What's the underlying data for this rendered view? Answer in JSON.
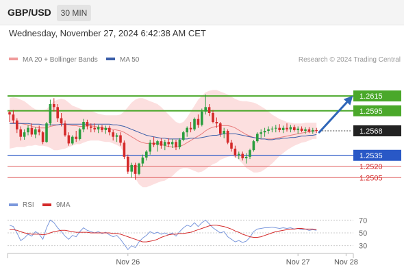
{
  "header": {
    "symbol": "GBP/USD",
    "timeframe": "30 MIN",
    "timestamp": "Wednesday, November 27, 2024 6:42:38 AM CET"
  },
  "legend": {
    "ma20_label": "MA 20 + Bollinger Bands",
    "ma50_label": "MA 50",
    "source": "Research © 2024 Trading Central",
    "rsi_label": "RSI",
    "rsi_ma_label": "9MA"
  },
  "colors": {
    "up_candle": "#2a9d3e",
    "down_candle": "#d42a2a",
    "bollinger": "#fcd9d9",
    "ma20": "#e87c7c",
    "ma50": "#3a5ea8",
    "resistance": "#4aa82a",
    "pivot": "#2958c6",
    "support": "#e06060",
    "arrow": "#2f66b8",
    "rsi": "#7b98dc",
    "rsi_ma": "#d42a2a"
  },
  "chart_data": [
    {
      "type": "candlestick",
      "ylim": [
        1.2484,
        1.2652
      ],
      "current_price": 1.2568,
      "levels": [
        {
          "value": 1.2615,
          "label": "1.2615",
          "kind": "resistance"
        },
        {
          "value": 1.2595,
          "label": "1.2595",
          "kind": "resistance"
        },
        {
          "value": 1.2568,
          "label": "1.2568",
          "kind": "current"
        },
        {
          "value": 1.2535,
          "label": "1.2535",
          "kind": "pivot"
        },
        {
          "value": 1.252,
          "label": "1.2520",
          "kind": "support"
        },
        {
          "value": 1.2505,
          "label": "1.2505",
          "kind": "support"
        }
      ],
      "x_ticks": [
        {
          "index": 32,
          "label": "Nov 26"
        },
        {
          "index": 78,
          "label": "Nov 27"
        },
        {
          "index": 91,
          "label": "Nov 28"
        }
      ],
      "candles": [
        [
          1.2593,
          1.2595,
          1.258,
          1.259
        ],
        [
          1.259,
          1.2596,
          1.2578,
          1.2582
        ],
        [
          1.2582,
          1.2585,
          1.2565,
          1.257
        ],
        [
          1.257,
          1.2574,
          1.2555,
          1.256
        ],
        [
          1.256,
          1.257,
          1.2556,
          1.2566
        ],
        [
          1.2566,
          1.2576,
          1.2562,
          1.2572
        ],
        [
          1.2572,
          1.2578,
          1.256,
          1.2563
        ],
        [
          1.2563,
          1.2573,
          1.2558,
          1.257
        ],
        [
          1.257,
          1.2575,
          1.2562,
          1.2566
        ],
        [
          1.2566,
          1.2568,
          1.255,
          1.2553
        ],
        [
          1.2553,
          1.258,
          1.2552,
          1.2578
        ],
        [
          1.2578,
          1.261,
          1.2575,
          1.2604
        ],
        [
          1.2604,
          1.2612,
          1.2594,
          1.26
        ],
        [
          1.26,
          1.2604,
          1.258,
          1.2585
        ],
        [
          1.2585,
          1.2592,
          1.2574,
          1.2578
        ],
        [
          1.2578,
          1.2582,
          1.256,
          1.2562
        ],
        [
          1.2562,
          1.2566,
          1.2548,
          1.2551
        ],
        [
          1.2551,
          1.2562,
          1.2549,
          1.256
        ],
        [
          1.256,
          1.2568,
          1.2553,
          1.2557
        ],
        [
          1.2557,
          1.2572,
          1.2555,
          1.257
        ],
        [
          1.257,
          1.2584,
          1.2566,
          1.258
        ],
        [
          1.258,
          1.2583,
          1.257,
          1.2574
        ],
        [
          1.2574,
          1.2578,
          1.2566,
          1.2572
        ],
        [
          1.2572,
          1.2578,
          1.2566,
          1.257
        ],
        [
          1.257,
          1.2576,
          1.2565,
          1.2573
        ],
        [
          1.2573,
          1.2576,
          1.2566,
          1.2569
        ],
        [
          1.2569,
          1.2575,
          1.2564,
          1.2572
        ],
        [
          1.2572,
          1.2575,
          1.2562,
          1.2566
        ],
        [
          1.2566,
          1.2569,
          1.2555,
          1.256
        ],
        [
          1.256,
          1.2565,
          1.2553,
          1.2562
        ],
        [
          1.2562,
          1.2566,
          1.2548,
          1.2552
        ],
        [
          1.2552,
          1.2555,
          1.253,
          1.2533
        ],
        [
          1.2533,
          1.2536,
          1.251,
          1.2513
        ],
        [
          1.2513,
          1.2525,
          1.2505,
          1.2522
        ],
        [
          1.2522,
          1.2525,
          1.2502,
          1.251
        ],
        [
          1.251,
          1.2525,
          1.2508,
          1.2524
        ],
        [
          1.2524,
          1.2536,
          1.252,
          1.2532
        ],
        [
          1.2532,
          1.2542,
          1.2528,
          1.254
        ],
        [
          1.254,
          1.2556,
          1.2536,
          1.2552
        ],
        [
          1.2552,
          1.256,
          1.2546,
          1.2549
        ],
        [
          1.2549,
          1.2556,
          1.254,
          1.2554
        ],
        [
          1.2554,
          1.2558,
          1.2544,
          1.2548
        ],
        [
          1.2548,
          1.2556,
          1.2542,
          1.2553
        ],
        [
          1.2553,
          1.2558,
          1.2546,
          1.255
        ],
        [
          1.255,
          1.2557,
          1.2545,
          1.2553
        ],
        [
          1.2553,
          1.2556,
          1.2542,
          1.2546
        ],
        [
          1.2546,
          1.2558,
          1.2543,
          1.2556
        ],
        [
          1.2556,
          1.2568,
          1.2554,
          1.2566
        ],
        [
          1.2566,
          1.2574,
          1.256,
          1.2572
        ],
        [
          1.2572,
          1.258,
          1.2566,
          1.257
        ],
        [
          1.257,
          1.2586,
          1.2568,
          1.2584
        ],
        [
          1.2584,
          1.259,
          1.2572,
          1.2576
        ],
        [
          1.2576,
          1.2598,
          1.2574,
          1.2594
        ],
        [
          1.2594,
          1.2617,
          1.259,
          1.26
        ],
        [
          1.26,
          1.2604,
          1.2588,
          1.2592
        ],
        [
          1.2592,
          1.2596,
          1.2578,
          1.258
        ],
        [
          1.258,
          1.2586,
          1.2572,
          1.2578
        ],
        [
          1.2578,
          1.258,
          1.256,
          1.2564
        ],
        [
          1.2564,
          1.2572,
          1.2558,
          1.2568
        ],
        [
          1.2568,
          1.257,
          1.255,
          1.2552
        ],
        [
          1.2552,
          1.2556,
          1.254,
          1.2544
        ],
        [
          1.2544,
          1.2548,
          1.2532,
          1.2535
        ],
        [
          1.2535,
          1.254,
          1.253,
          1.2537
        ],
        [
          1.2537,
          1.254,
          1.2528,
          1.2531
        ],
        [
          1.2531,
          1.2538,
          1.2524,
          1.2533
        ],
        [
          1.2533,
          1.2544,
          1.253,
          1.2542
        ],
        [
          1.2542,
          1.2556,
          1.254,
          1.2554
        ],
        [
          1.2554,
          1.2566,
          1.2552,
          1.2564
        ],
        [
          1.2564,
          1.257,
          1.2558,
          1.2566
        ],
        [
          1.2566,
          1.2572,
          1.256,
          1.2568
        ],
        [
          1.2568,
          1.2574,
          1.2564,
          1.257
        ],
        [
          1.257,
          1.2574,
          1.2566,
          1.2571
        ],
        [
          1.2571,
          1.2576,
          1.2566,
          1.2572
        ],
        [
          1.2572,
          1.2577,
          1.2566,
          1.2569
        ],
        [
          1.2569,
          1.2575,
          1.2565,
          1.2572
        ],
        [
          1.2572,
          1.2578,
          1.2567,
          1.257
        ],
        [
          1.257,
          1.2576,
          1.2566,
          1.2573
        ],
        [
          1.2573,
          1.2576,
          1.2567,
          1.2569
        ],
        [
          1.2569,
          1.2574,
          1.2564,
          1.2571
        ],
        [
          1.2571,
          1.2574,
          1.2566,
          1.2568
        ],
        [
          1.2568,
          1.2573,
          1.2564,
          1.257
        ],
        [
          1.257,
          1.2573,
          1.2565,
          1.2567
        ],
        [
          1.2567,
          1.2572,
          1.2564,
          1.2569
        ],
        [
          1.2569,
          1.2572,
          1.2565,
          1.2568
        ]
      ],
      "ma20": [
        1.2578,
        1.2579,
        1.2579,
        1.2578,
        1.2577,
        1.2576,
        1.2574,
        1.2573,
        1.2572,
        1.2572,
        1.2572,
        1.2574,
        1.2575,
        1.2576,
        1.2577,
        1.2577,
        1.2576,
        1.2575,
        1.2575,
        1.2574,
        1.2574,
        1.2575,
        1.2575,
        1.2574,
        1.2573,
        1.2572,
        1.2571,
        1.2571,
        1.257,
        1.2569,
        1.2568,
        1.2566,
        1.2563,
        1.256,
        1.2557,
        1.2554,
        1.2552,
        1.2551,
        1.2551,
        1.2551,
        1.2551,
        1.255,
        1.2548,
        1.2547,
        1.2546,
        1.2546,
        1.2547,
        1.2549,
        1.2552,
        1.2555,
        1.2558,
        1.2561,
        1.2564,
        1.2568,
        1.2571,
        1.2573,
        1.2574,
        1.2575,
        1.2575,
        1.2575,
        1.2574,
        1.2572,
        1.2569,
        1.2566,
        1.2563,
        1.2561,
        1.2559,
        1.2558,
        1.2557,
        1.2557,
        1.2557,
        1.2557,
        1.2558,
        1.2559,
        1.256,
        1.2561,
        1.2562,
        1.2563,
        1.2564,
        1.2565,
        1.2566,
        1.2567,
        1.2568,
        1.2568
      ],
      "bb_upper": [
        1.2612,
        1.2613,
        1.2612,
        1.261,
        1.2608,
        1.2604,
        1.26,
        1.2597,
        1.2596,
        1.2596,
        1.2597,
        1.2603,
        1.2608,
        1.261,
        1.2611,
        1.261,
        1.2606,
        1.2602,
        1.26,
        1.2598,
        1.2596,
        1.2596,
        1.2595,
        1.2593,
        1.2591,
        1.259,
        1.2589,
        1.2589,
        1.2589,
        1.2589,
        1.259,
        1.2594,
        1.26,
        1.2606,
        1.261,
        1.2612,
        1.2612,
        1.261,
        1.2608,
        1.2606,
        1.2604,
        1.26,
        1.2595,
        1.259,
        1.2585,
        1.258,
        1.2578,
        1.258,
        1.2586,
        1.2594,
        1.2602,
        1.261,
        1.2615,
        1.262,
        1.2622,
        1.2623,
        1.2623,
        1.2621,
        1.2619,
        1.2617,
        1.2614,
        1.2611,
        1.2609,
        1.2608,
        1.2608,
        1.2607,
        1.2606,
        1.2604,
        1.2601,
        1.2598,
        1.2594,
        1.259,
        1.2587,
        1.2584,
        1.2582,
        1.258,
        1.2579,
        1.2578,
        1.2578,
        1.2578,
        1.2579,
        1.2579,
        1.2579,
        1.2579
      ],
      "bb_lower": [
        1.2544,
        1.2545,
        1.2546,
        1.2546,
        1.2546,
        1.2548,
        1.2548,
        1.2549,
        1.2548,
        1.2548,
        1.2547,
        1.2545,
        1.2542,
        1.2542,
        1.2543,
        1.2544,
        1.2546,
        1.2548,
        1.255,
        1.255,
        1.2552,
        1.2554,
        1.2555,
        1.2555,
        1.2555,
        1.2554,
        1.2553,
        1.2553,
        1.2551,
        1.2549,
        1.2546,
        1.2538,
        1.2526,
        1.2514,
        1.2504,
        1.2496,
        1.2492,
        1.2492,
        1.2494,
        1.2496,
        1.2498,
        1.25,
        1.2501,
        1.2504,
        1.2507,
        1.2512,
        1.2516,
        1.2518,
        1.2518,
        1.2516,
        1.2514,
        1.2512,
        1.2513,
        1.2516,
        1.252,
        1.2523,
        1.2525,
        1.2529,
        1.2531,
        1.2533,
        1.2534,
        1.2533,
        1.2529,
        1.2524,
        1.2518,
        1.2515,
        1.2512,
        1.2512,
        1.2513,
        1.2516,
        1.252,
        1.2524,
        1.2529,
        1.2534,
        1.2538,
        1.2542,
        1.2545,
        1.2548,
        1.255,
        1.2552,
        1.2553,
        1.2555,
        1.2557,
        1.2557
      ],
      "ma50": [
        1.2578,
        1.2578,
        1.2578,
        1.2578,
        1.2578,
        1.2578,
        1.2577,
        1.2577,
        1.2577,
        1.2576,
        1.2576,
        1.2576,
        1.2576,
        1.2576,
        1.2577,
        1.2577,
        1.2577,
        1.2577,
        1.2577,
        1.2577,
        1.2577,
        1.2577,
        1.2577,
        1.2577,
        1.2577,
        1.2577,
        1.2577,
        1.2577,
        1.2576,
        1.2576,
        1.2575,
        1.2574,
        1.2572,
        1.257,
        1.2568,
        1.2566,
        1.2564,
        1.2562,
        1.2561,
        1.256,
        1.2559,
        1.2558,
        1.2558,
        1.2557,
        1.2557,
        1.2557,
        1.2557,
        1.2557,
        1.2557,
        1.2558,
        1.2558,
        1.2558,
        1.2559,
        1.256,
        1.2561,
        1.2562,
        1.2562,
        1.2563,
        1.2564,
        1.2564,
        1.2564,
        1.2564,
        1.2563,
        1.2562,
        1.2561,
        1.256,
        1.2559,
        1.2558,
        1.2557,
        1.2557,
        1.2556,
        1.2556,
        1.2557,
        1.2557,
        1.2558,
        1.2558,
        1.2559,
        1.2559,
        1.256,
        1.2561,
        1.2561,
        1.2562,
        1.2562,
        1.2563
      ]
    },
    {
      "type": "line",
      "ylim": [
        20,
        80
      ],
      "y_ticks": [
        70,
        50,
        30
      ],
      "series": [
        {
          "name": "RSI",
          "values": [
            62,
            60,
            50,
            38,
            42,
            48,
            45,
            52,
            48,
            40,
            58,
            70,
            66,
            58,
            52,
            45,
            40,
            46,
            44,
            52,
            58,
            54,
            52,
            50,
            52,
            49,
            51,
            47,
            44,
            46,
            40,
            32,
            24,
            30,
            27,
            36,
            42,
            46,
            52,
            49,
            51,
            48,
            50,
            47,
            50,
            45,
            52,
            58,
            62,
            60,
            66,
            60,
            66,
            70,
            64,
            58,
            54,
            50,
            52,
            44,
            40,
            36,
            38,
            35,
            37,
            43,
            52,
            56,
            57,
            58,
            58,
            59,
            58,
            57,
            58,
            57,
            58,
            56,
            57,
            55,
            56,
            54,
            55,
            54
          ]
        },
        {
          "name": "9MA",
          "values": [
            55,
            55,
            54,
            52,
            50,
            49,
            48,
            48,
            48,
            47,
            48,
            50,
            52,
            53,
            54,
            54,
            53,
            52,
            51,
            51,
            51,
            51,
            50,
            50,
            50,
            50,
            50,
            50,
            49,
            49,
            48,
            46,
            44,
            42,
            40,
            38,
            36,
            36,
            37,
            38,
            40,
            43,
            45,
            47,
            48,
            48,
            49,
            49,
            50,
            51,
            53,
            55,
            57,
            59,
            61,
            62,
            62,
            61,
            60,
            58,
            56,
            53,
            51,
            48,
            46,
            44,
            43,
            43,
            44,
            46,
            48,
            50,
            52,
            53,
            54,
            55,
            56,
            56,
            57,
            57,
            56,
            56,
            56,
            55
          ]
        }
      ]
    }
  ]
}
